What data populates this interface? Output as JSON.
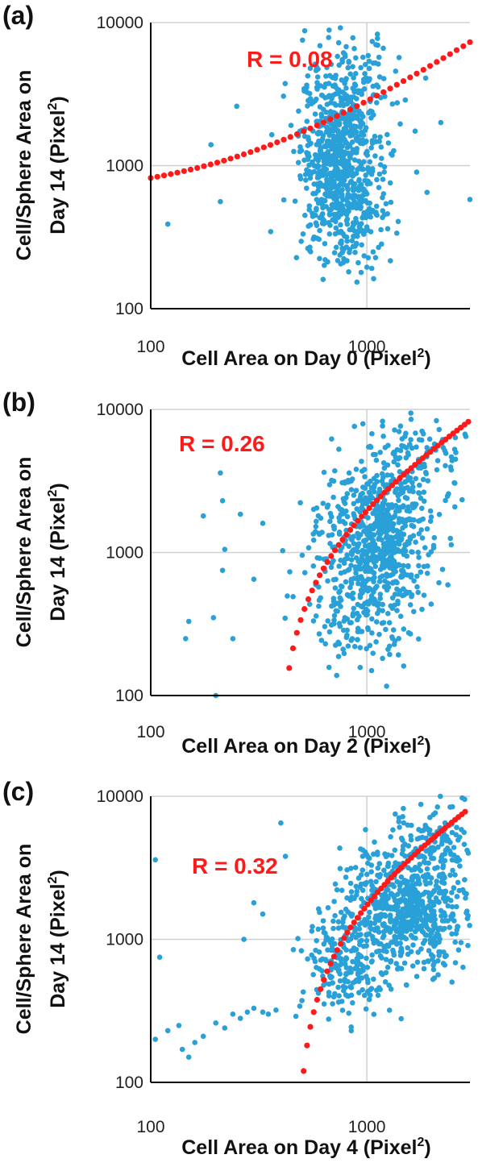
{
  "colors": {
    "points": "#29a0d8",
    "trend": "#ff1a1a",
    "grid": "#d0d0d0",
    "axis": "#000000"
  },
  "chart_data": [
    {
      "type": "scatter",
      "panel_label": "(a)",
      "xlabel": "Cell Area on Day 0 (Pixel",
      "ylabel_line1": "Cell/Sphere Area on",
      "ylabel_line2": "Day 14 (Pixel",
      "superscript": "2",
      "label_close": ")",
      "x_scale": "log",
      "y_scale": "log",
      "xlim": [
        100,
        3000
      ],
      "ylim": [
        100,
        10000
      ],
      "x_ticks": [
        {
          "value": 100,
          "label": "100"
        },
        {
          "value": 1000,
          "label": "1000"
        }
      ],
      "y_ticks": [
        {
          "value": 100,
          "label": "100"
        },
        {
          "value": 1000,
          "label": "1000"
        },
        {
          "value": 10000,
          "label": "10000"
        }
      ],
      "grid": true,
      "annotation": "R = 0.08",
      "trend": {
        "type": "log-linear",
        "x_start": 100,
        "y_start": 820,
        "x_end": 3000,
        "y_end": 7300
      },
      "clusters": [
        {
          "x": 750,
          "y": 1300,
          "sx": 0.09,
          "sy": 0.28,
          "n": 650
        },
        {
          "x": 800,
          "y": 400,
          "sx": 0.11,
          "sy": 0.2,
          "n": 180
        },
        {
          "x": 900,
          "y": 4000,
          "sx": 0.12,
          "sy": 0.18,
          "n": 80
        }
      ],
      "points": [
        [
          120,
          390
        ],
        [
          210,
          560
        ],
        [
          250,
          2600
        ],
        [
          190,
          1400
        ],
        [
          3000,
          580
        ],
        [
          2200,
          2000
        ],
        [
          1700,
          900
        ],
        [
          1900,
          650
        ]
      ]
    },
    {
      "type": "scatter",
      "panel_label": "(b)",
      "xlabel": "Cell Area on Day 2 (Pixel",
      "ylabel_line1": "Cell/Sphere Area on",
      "ylabel_line2": "Day 14 (Pixel",
      "superscript": "2",
      "label_close": ")",
      "x_scale": "log",
      "y_scale": "log",
      "xlim": [
        100,
        3000
      ],
      "ylim": [
        100,
        10000
      ],
      "x_ticks": [
        {
          "value": 100,
          "label": "100"
        },
        {
          "value": 1000,
          "label": "1000"
        }
      ],
      "y_ticks": [
        {
          "value": 100,
          "label": "100"
        },
        {
          "value": 1000,
          "label": "1000"
        },
        {
          "value": 10000,
          "label": "10000"
        }
      ],
      "grid": true,
      "annotation": "R = 0.26",
      "trend": {
        "type": "linear",
        "x_start": 420,
        "y_start": 100,
        "x_end": 2950,
        "y_end": 8200
      },
      "clusters": [
        {
          "x": 1100,
          "y": 1300,
          "sx": 0.13,
          "sy": 0.25,
          "n": 650
        },
        {
          "x": 900,
          "y": 400,
          "sx": 0.13,
          "sy": 0.2,
          "n": 150
        },
        {
          "x": 1700,
          "y": 4500,
          "sx": 0.12,
          "sy": 0.15,
          "n": 100
        }
      ],
      "points": [
        [
          145,
          250
        ],
        [
          150,
          330
        ],
        [
          175,
          1800
        ],
        [
          195,
          350
        ],
        [
          210,
          3600
        ],
        [
          215,
          2300
        ],
        [
          220,
          1050
        ],
        [
          215,
          750
        ],
        [
          240,
          250
        ],
        [
          260,
          1850
        ],
        [
          200,
          100
        ],
        [
          300,
          650
        ],
        [
          330,
          1600
        ]
      ]
    },
    {
      "type": "scatter",
      "panel_label": "(c)",
      "xlabel": "Cell Area on Day 4 (Pixel",
      "ylabel_line1": "Cell/Sphere Area on",
      "ylabel_line2": "Day 14 (Pixel",
      "superscript": "2",
      "label_close": ")",
      "x_scale": "log",
      "y_scale": "log",
      "xlim": [
        100,
        3000
      ],
      "ylim": [
        100,
        10000
      ],
      "x_ticks": [
        {
          "value": 100,
          "label": "100"
        },
        {
          "value": 1000,
          "label": "1000"
        }
      ],
      "y_ticks": [
        {
          "value": 100,
          "label": "100"
        },
        {
          "value": 1000,
          "label": "1000"
        },
        {
          "value": 10000,
          "label": "10000"
        }
      ],
      "grid": true,
      "annotation": "R = 0.32",
      "trend": {
        "type": "linear",
        "x_start": 510,
        "y_start": 120,
        "x_end": 2850,
        "y_end": 7800
      },
      "clusters": [
        {
          "x": 1500,
          "y": 1600,
          "sx": 0.14,
          "sy": 0.22,
          "n": 650
        },
        {
          "x": 800,
          "y": 650,
          "sx": 0.1,
          "sy": 0.2,
          "n": 200
        },
        {
          "x": 2200,
          "y": 5000,
          "sx": 0.1,
          "sy": 0.15,
          "n": 120
        }
      ],
      "points": [
        [
          105,
          3600
        ],
        [
          110,
          750
        ],
        [
          120,
          230
        ],
        [
          135,
          250
        ],
        [
          140,
          170
        ],
        [
          150,
          150
        ],
        [
          160,
          190
        ],
        [
          175,
          210
        ],
        [
          200,
          260
        ],
        [
          220,
          240
        ],
        [
          240,
          300
        ],
        [
          260,
          280
        ],
        [
          280,
          310
        ],
        [
          300,
          330
        ],
        [
          330,
          310
        ],
        [
          350,
          300
        ],
        [
          380,
          320
        ],
        [
          270,
          1000
        ],
        [
          300,
          1800
        ],
        [
          330,
          1500
        ],
        [
          400,
          6500
        ],
        [
          420,
          3800
        ],
        [
          105,
          200
        ]
      ]
    }
  ]
}
